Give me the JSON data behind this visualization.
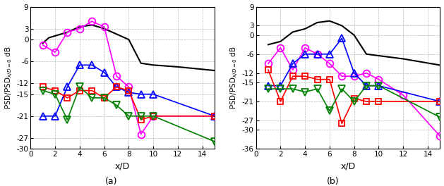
{
  "panel_a": {
    "xlabel": "x/D",
    "ylabel": "PSD/PSD$_{x/D=0}$ dB",
    "xlim": [
      0,
      15
    ],
    "ylim": [
      -30,
      9
    ],
    "yticks": [
      9,
      3,
      0,
      -6,
      -12,
      -15,
      -21,
      -27,
      -30
    ],
    "xticks": [
      0,
      2,
      4,
      6,
      8,
      10,
      12,
      14
    ],
    "black_x": [
      1,
      1.5,
      2,
      3,
      4,
      5,
      6,
      7,
      8,
      9,
      10,
      12,
      15
    ],
    "black_y": [
      -1,
      0.5,
      1,
      2,
      3.5,
      4,
      3,
      1.5,
      0,
      -6.5,
      -7,
      -7.5,
      -8.5
    ],
    "magenta_x": [
      1,
      2,
      3,
      4,
      5,
      6,
      7,
      8,
      9,
      10,
      15
    ],
    "magenta_y": [
      -1.5,
      -3.5,
      2,
      3,
      5,
      3.5,
      -10,
      -13,
      -26,
      -21,
      -21
    ],
    "blue_x": [
      1,
      2,
      3,
      4,
      5,
      6,
      7,
      8,
      9,
      10,
      15
    ],
    "blue_y": [
      -21,
      -21,
      -13,
      -7,
      -7,
      -9,
      -13,
      -14.5,
      -15,
      -15,
      -21
    ],
    "red_x": [
      1,
      2,
      3,
      4,
      5,
      6,
      7,
      8,
      9,
      10,
      15
    ],
    "red_y": [
      -13,
      -14,
      -16,
      -14,
      -14,
      -16,
      -13,
      -14,
      -22,
      -21,
      -21
    ],
    "green_x": [
      1,
      2,
      3,
      4,
      5,
      6,
      7,
      8,
      9,
      10,
      15
    ],
    "green_y": [
      -14,
      -15,
      -22,
      -13,
      -16,
      -16,
      -18,
      -21,
      -21,
      -21,
      -28
    ]
  },
  "panel_b": {
    "xlabel": "x/D",
    "ylabel": "PSD/PSD$_{x/D=0}$ dB",
    "xlim": [
      0,
      15
    ],
    "ylim": [
      -36,
      9
    ],
    "yticks": [
      9,
      3,
      0,
      -6,
      -12,
      -15,
      -21,
      -27,
      -30,
      -36
    ],
    "xticks": [
      0,
      2,
      4,
      6,
      8,
      10,
      12,
      14
    ],
    "black_x": [
      1,
      2,
      3,
      4,
      5,
      6,
      7,
      8,
      9,
      10,
      12,
      15
    ],
    "black_y": [
      -3,
      -2,
      1,
      2,
      4,
      4.5,
      3,
      0,
      -6,
      -6.5,
      -7.5,
      -9.5
    ],
    "magenta_x": [
      1,
      2,
      3,
      4,
      5,
      6,
      7,
      8,
      9,
      10,
      12,
      15
    ],
    "magenta_y": [
      -9,
      -4,
      -11,
      -4,
      -6,
      -9,
      -13,
      -13,
      -12,
      -14,
      -19,
      -32
    ],
    "blue_x": [
      1,
      2,
      3,
      4,
      5,
      6,
      7,
      8,
      9,
      10,
      15
    ],
    "blue_y": [
      -16,
      -16,
      -9,
      -6,
      -6,
      -6,
      -1,
      -12,
      -16,
      -16,
      -21
    ],
    "red_x": [
      1,
      2,
      3,
      4,
      5,
      6,
      7,
      8,
      9,
      10,
      15
    ],
    "red_y": [
      -11,
      -21,
      -13,
      -13,
      -14,
      -14,
      -28,
      -20,
      -21,
      -21,
      -21
    ],
    "green_x": [
      1,
      2,
      3,
      4,
      5,
      6,
      7,
      8,
      9,
      10,
      15
    ],
    "green_y": [
      -17,
      -17,
      -17,
      -18,
      -17,
      -24,
      -17,
      -21,
      -16,
      -16,
      -26
    ]
  },
  "colors": {
    "black": "#000000",
    "magenta": "#ff00ff",
    "blue": "#0000ff",
    "red": "#ff0000",
    "green": "#008000"
  },
  "bg_color": "#ffffff",
  "grid_color": "#bbbbbb"
}
